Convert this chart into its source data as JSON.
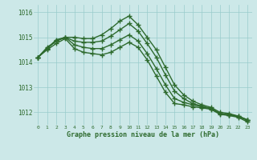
{
  "x": [
    0,
    1,
    2,
    3,
    4,
    5,
    6,
    7,
    8,
    9,
    10,
    11,
    12,
    13,
    14,
    15,
    16,
    17,
    18,
    19,
    20,
    21,
    22,
    23
  ],
  "line1": [
    1014.2,
    1014.6,
    1014.85,
    1015.0,
    1015.0,
    1014.95,
    1014.95,
    1015.1,
    1015.35,
    1015.65,
    1015.85,
    1015.5,
    1015.0,
    1014.5,
    1013.8,
    1013.1,
    1012.7,
    1012.45,
    1012.3,
    1012.2,
    1012.0,
    1011.95,
    1011.85,
    1011.7
  ],
  "line2": [
    1014.2,
    1014.55,
    1014.9,
    1015.0,
    1014.85,
    1014.8,
    1014.8,
    1014.85,
    1015.05,
    1015.3,
    1015.55,
    1015.25,
    1014.75,
    1014.2,
    1013.5,
    1012.85,
    1012.55,
    1012.35,
    1012.25,
    1012.15,
    1011.95,
    1011.9,
    1011.85,
    1011.7
  ],
  "line3": [
    1014.2,
    1014.55,
    1014.85,
    1015.0,
    1014.7,
    1014.6,
    1014.55,
    1014.55,
    1014.7,
    1014.9,
    1015.1,
    1014.85,
    1014.35,
    1013.75,
    1013.1,
    1012.55,
    1012.4,
    1012.3,
    1012.22,
    1012.15,
    1011.95,
    1011.9,
    1011.82,
    1011.68
  ],
  "line4": [
    1014.2,
    1014.5,
    1014.75,
    1014.95,
    1014.55,
    1014.4,
    1014.35,
    1014.3,
    1014.4,
    1014.6,
    1014.8,
    1014.6,
    1014.1,
    1013.45,
    1012.8,
    1012.35,
    1012.3,
    1012.22,
    1012.18,
    1012.12,
    1011.92,
    1011.87,
    1011.8,
    1011.62
  ],
  "line_color": "#2d6a2d",
  "bg_color": "#cce8e8",
  "grid_color": "#99cccc",
  "xlabel": "Graphe pression niveau de la mer (hPa)",
  "xlabel_color": "#2d6a2d",
  "tick_color": "#2d6a2d",
  "ylim": [
    1011.5,
    1016.3
  ],
  "yticks": [
    1012,
    1013,
    1014,
    1015,
    1016
  ],
  "marker": "+",
  "markersize": 4,
  "linewidth": 1.0
}
